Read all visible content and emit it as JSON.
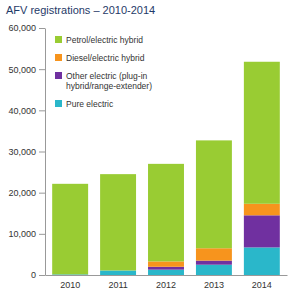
{
  "chart_data": {
    "type": "bar",
    "title": "AFV registrations – 2010-2014",
    "stacked": true,
    "legend": "upper left",
    "grid": false,
    "categories": [
      "2010",
      "2011",
      "2012",
      "2013",
      "2014"
    ],
    "series": [
      {
        "name": "Petrol/electric hybrid",
        "color": "#99cc33",
        "values": [
          22000,
          23400,
          23700,
          26200,
          34500
        ]
      },
      {
        "name": "Diesel/electric hybrid",
        "color": "#f7941d",
        "values": [
          0,
          0,
          1300,
          3000,
          2800
        ]
      },
      {
        "name": "Other electric (plug-in hybrid/range-extender)",
        "color": "#7030a0",
        "values": [
          0,
          0,
          700,
          1000,
          7800
        ]
      },
      {
        "name": "Pure electric",
        "color": "#2ab7ca",
        "values": [
          150,
          1100,
          1300,
          2500,
          6700
        ]
      }
    ],
    "ylim": [
      0,
      60000
    ],
    "yticks": [
      0,
      {
        "value": 10000,
        "label": "10,000"
      },
      {
        "value": 20000,
        "label": "20,000"
      },
      {
        "value": 30000,
        "label": "30,000"
      },
      {
        "value": 40000,
        "label": "40,000"
      },
      {
        "value": 50000,
        "label": "50,000"
      },
      {
        "value": 60000,
        "label": "60,000"
      }
    ]
  }
}
